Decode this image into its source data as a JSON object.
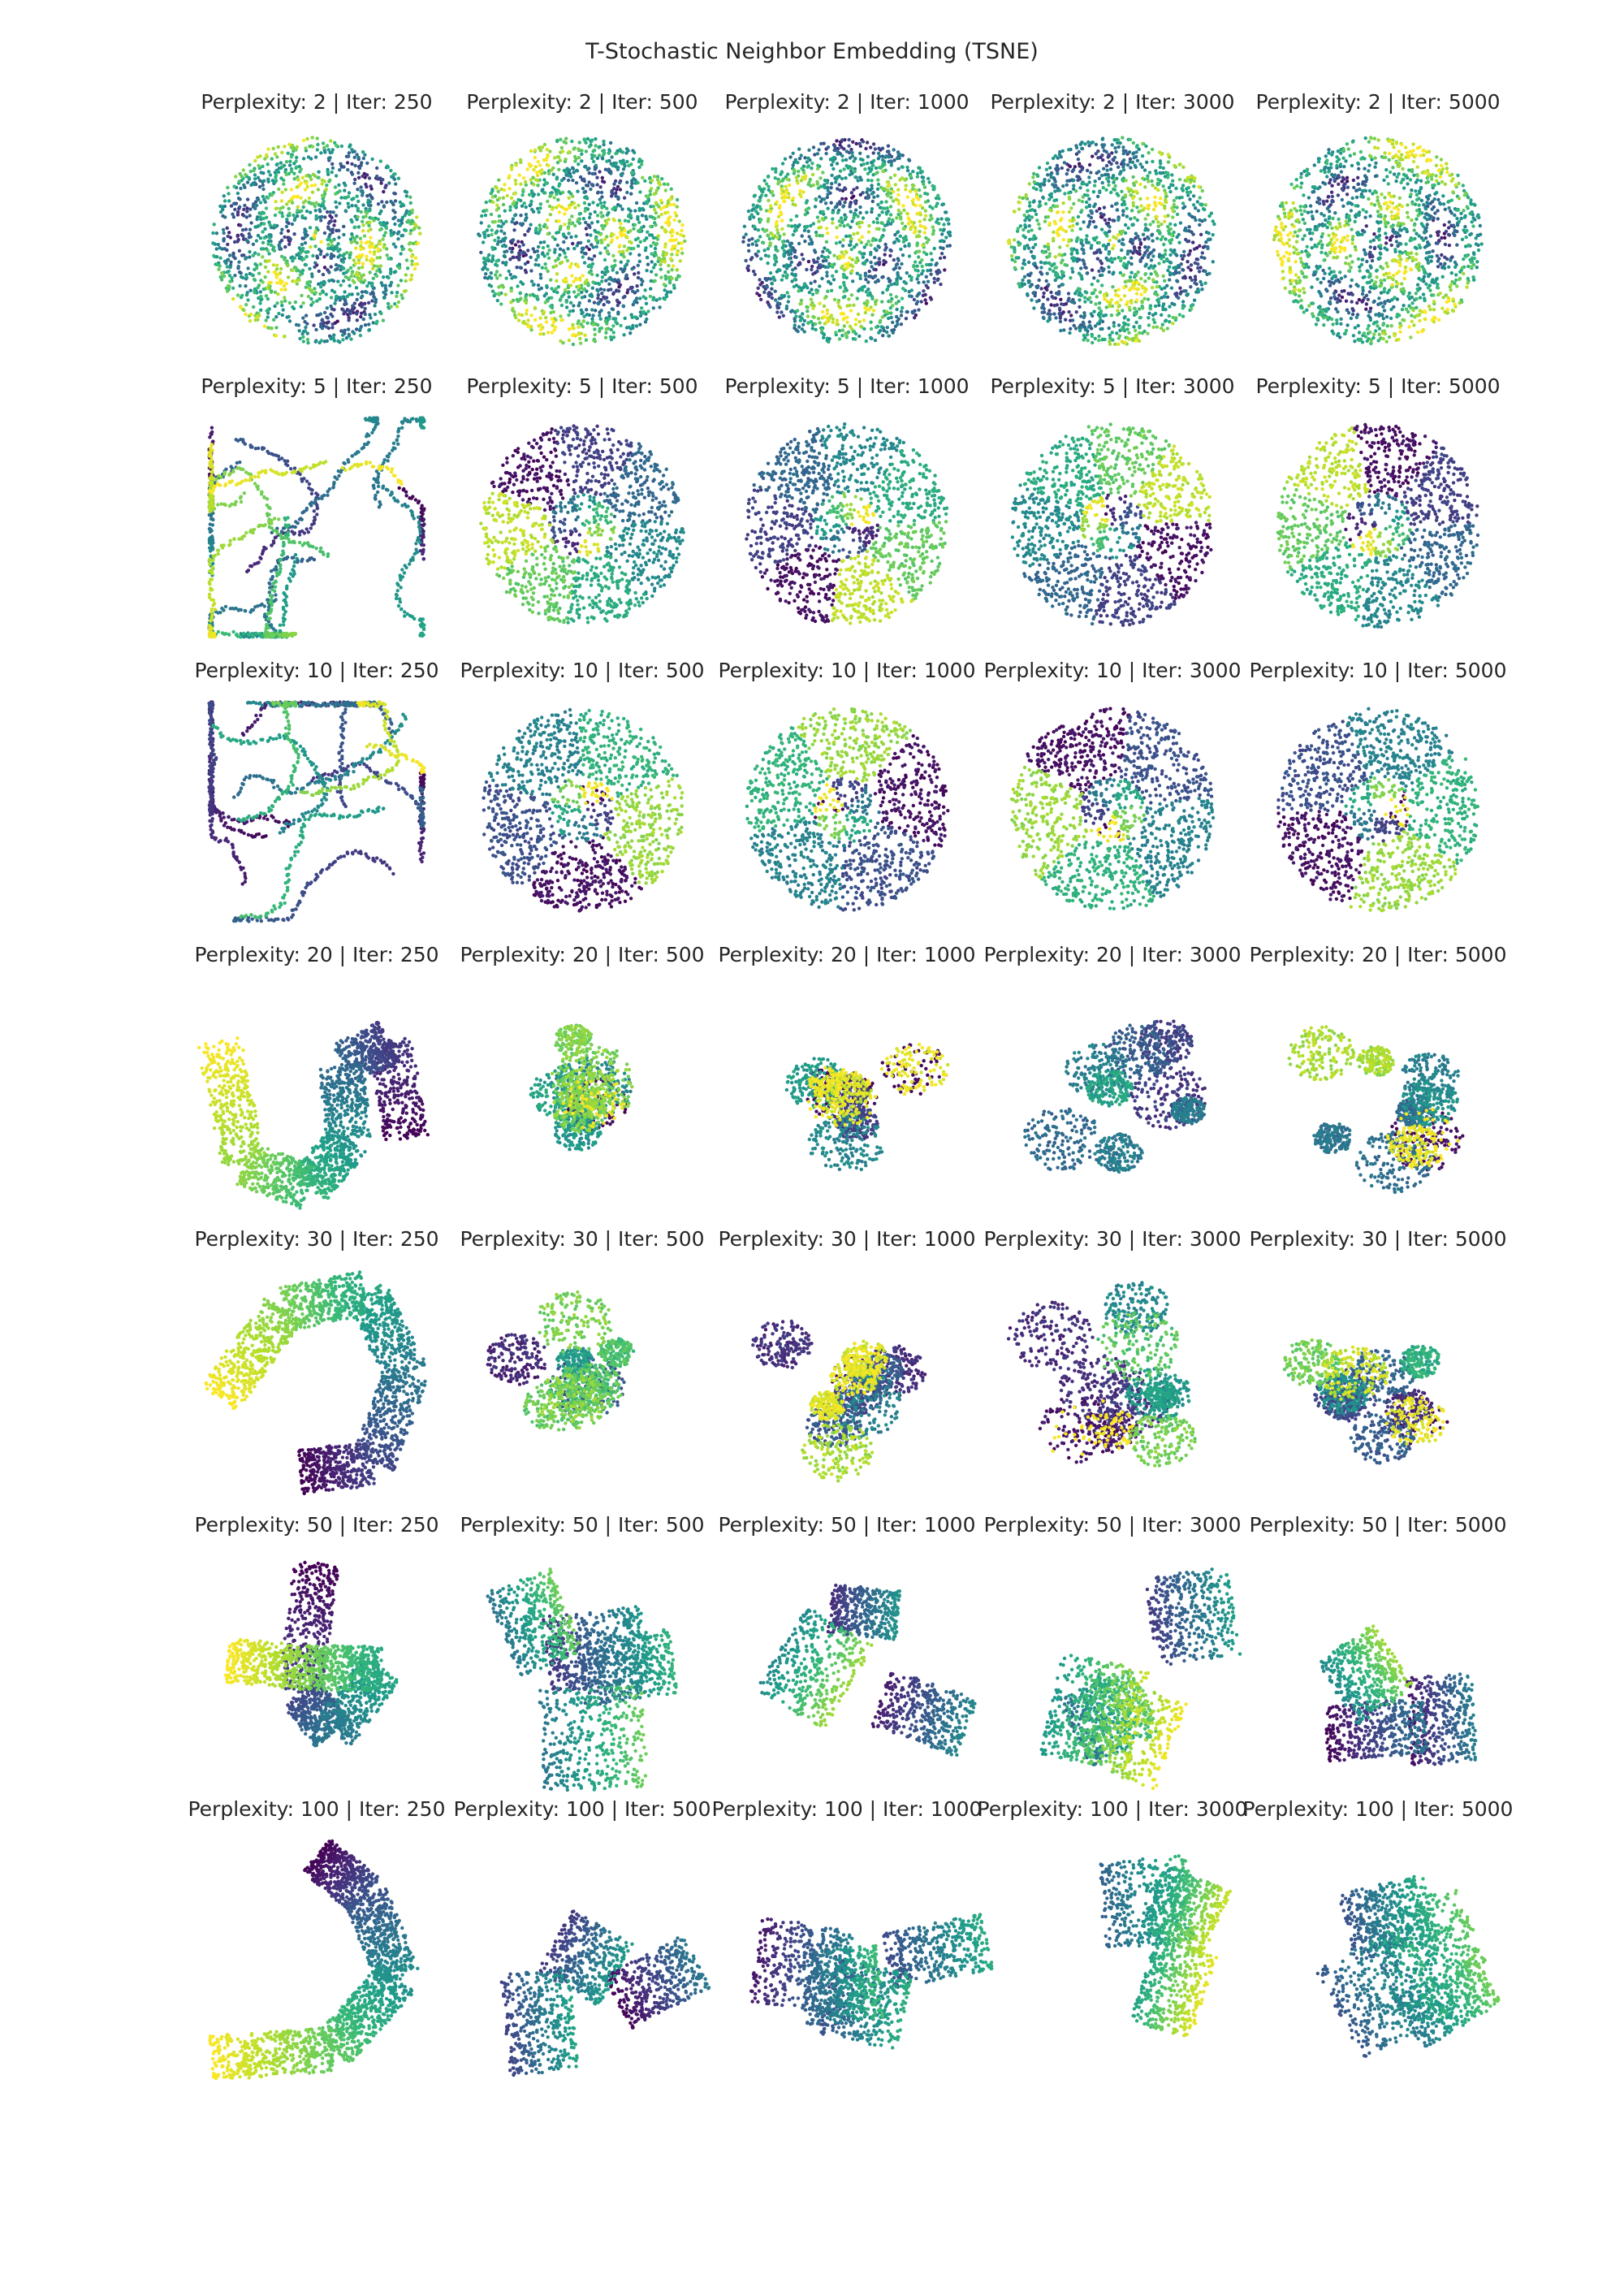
{
  "chart_data": {
    "type": "scatter",
    "title": "T-Stochastic Neighbor Embedding (TSNE)",
    "xlabel": "",
    "ylabel": "",
    "colormap": "viridis",
    "axes_visible": false,
    "grid": false,
    "rows": 7,
    "cols": 5,
    "perplexities": [
      2,
      5,
      10,
      20,
      30,
      50,
      100
    ],
    "iterations": [
      250,
      500,
      1000,
      3000,
      5000
    ],
    "panels": [
      {
        "title": "Perplexity: 2 | Iter: 250",
        "shape": "disc"
      },
      {
        "title": "Perplexity: 2 | Iter: 500",
        "shape": "disc"
      },
      {
        "title": "Perplexity: 2 | Iter: 1000",
        "shape": "disc"
      },
      {
        "title": "Perplexity: 2 | Iter: 3000",
        "shape": "disc"
      },
      {
        "title": "Perplexity: 2 | Iter: 5000",
        "shape": "disc"
      },
      {
        "title": "Perplexity: 5 | Iter: 250",
        "shape": "tangle"
      },
      {
        "title": "Perplexity: 5 | Iter: 500",
        "shape": "disc-patches"
      },
      {
        "title": "Perplexity: 5 | Iter: 1000",
        "shape": "disc-patches"
      },
      {
        "title": "Perplexity: 5 | Iter: 3000",
        "shape": "disc-patches"
      },
      {
        "title": "Perplexity: 5 | Iter: 5000",
        "shape": "disc-patches"
      },
      {
        "title": "Perplexity: 10 | Iter: 250",
        "shape": "tangle"
      },
      {
        "title": "Perplexity: 10 | Iter: 500",
        "shape": "disc-patches"
      },
      {
        "title": "Perplexity: 10 | Iter: 1000",
        "shape": "disc-patches"
      },
      {
        "title": "Perplexity: 10 | Iter: 3000",
        "shape": "disc-patches"
      },
      {
        "title": "Perplexity: 10 | Iter: 5000",
        "shape": "disc-patches"
      },
      {
        "title": "Perplexity: 20 | Iter: 250",
        "shape": "ribbon-s"
      },
      {
        "title": "Perplexity: 20 | Iter: 500",
        "shape": "fragments"
      },
      {
        "title": "Perplexity: 20 | Iter: 1000",
        "shape": "fragments"
      },
      {
        "title": "Perplexity: 20 | Iter: 3000",
        "shape": "fragments"
      },
      {
        "title": "Perplexity: 20 | Iter: 5000",
        "shape": "fragments"
      },
      {
        "title": "Perplexity: 30 | Iter: 250",
        "shape": "ribbon-hook"
      },
      {
        "title": "Perplexity: 30 | Iter: 500",
        "shape": "fragments"
      },
      {
        "title": "Perplexity: 30 | Iter: 1000",
        "shape": "fragments"
      },
      {
        "title": "Perplexity: 30 | Iter: 3000",
        "shape": "fragments"
      },
      {
        "title": "Perplexity: 30 | Iter: 5000",
        "shape": "fragments"
      },
      {
        "title": "Perplexity: 50 | Iter: 250",
        "shape": "ribbon-twist"
      },
      {
        "title": "Perplexity: 50 | Iter: 500",
        "shape": "blocks"
      },
      {
        "title": "Perplexity: 50 | Iter: 1000",
        "shape": "blocks"
      },
      {
        "title": "Perplexity: 50 | Iter: 3000",
        "shape": "blocks"
      },
      {
        "title": "Perplexity: 50 | Iter: 5000",
        "shape": "blocks"
      },
      {
        "title": "Perplexity: 100 | Iter: 250",
        "shape": "ribbon-u"
      },
      {
        "title": "Perplexity: 100 | Iter: 500",
        "shape": "blocks"
      },
      {
        "title": "Perplexity: 100 | Iter: 1000",
        "shape": "blocks"
      },
      {
        "title": "Perplexity: 100 | Iter: 3000",
        "shape": "blocks"
      },
      {
        "title": "Perplexity: 100 | Iter: 5000",
        "shape": "blocks"
      }
    ]
  }
}
